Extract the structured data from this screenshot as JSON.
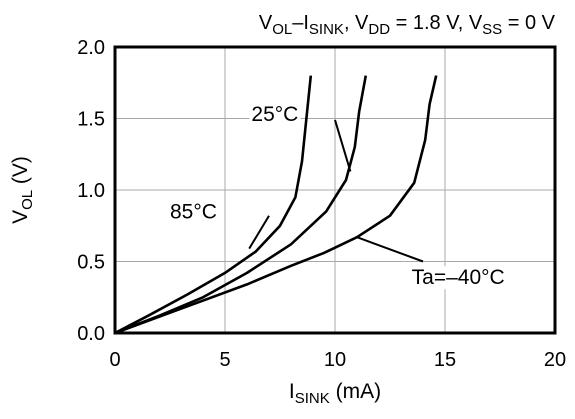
{
  "chart_data": {
    "type": "line",
    "title": {
      "parts": [
        {
          "t": "V"
        },
        {
          "t": "OL",
          "sub": true
        },
        {
          "t": "–I"
        },
        {
          "t": "SINK",
          "sub": true
        },
        {
          "t": ", V"
        },
        {
          "t": "DD",
          "sub": true
        },
        {
          "t": " = 1.8 V, V"
        },
        {
          "t": "SS",
          "sub": true
        },
        {
          "t": " = 0 V"
        }
      ]
    },
    "xlabel": {
      "parts": [
        {
          "t": "I"
        },
        {
          "t": "SINK",
          "sub": true
        },
        {
          "t": " (mA)"
        }
      ]
    },
    "ylabel": {
      "parts": [
        {
          "t": "V"
        },
        {
          "t": "OL",
          "sub": true
        },
        {
          "t": " (V)"
        }
      ]
    },
    "xlim": [
      0,
      20
    ],
    "ylim": [
      0,
      2.0
    ],
    "x_ticks": [
      {
        "value": 0,
        "label": "0"
      },
      {
        "value": 5,
        "label": "5"
      },
      {
        "value": 10,
        "label": "10"
      },
      {
        "value": 15,
        "label": "15"
      },
      {
        "value": 20,
        "label": "20"
      }
    ],
    "y_ticks": [
      {
        "value": 0,
        "label": "0.0"
      },
      {
        "value": 0.5,
        "label": "0.5"
      },
      {
        "value": 1.0,
        "label": "1.0"
      },
      {
        "value": 1.5,
        "label": "1.5"
      },
      {
        "value": 2.0,
        "label": "2.0"
      }
    ],
    "grid": true,
    "series": [
      {
        "key": "85c",
        "label": "85°C",
        "color": "#000000",
        "points": [
          [
            0,
            0
          ],
          [
            1.5,
            0.12
          ],
          [
            3.3,
            0.27
          ],
          [
            5.0,
            0.42
          ],
          [
            6.4,
            0.57
          ],
          [
            7.5,
            0.75
          ],
          [
            8.2,
            0.95
          ],
          [
            8.5,
            1.2
          ],
          [
            8.7,
            1.5
          ],
          [
            8.9,
            1.8
          ]
        ],
        "label_anchor": [
          6.1,
          0.59
        ]
      },
      {
        "key": "25c",
        "label": "25°C",
        "color": "#000000",
        "points": [
          [
            0,
            0
          ],
          [
            2.0,
            0.12
          ],
          [
            4.0,
            0.25
          ],
          [
            6.0,
            0.42
          ],
          [
            8.0,
            0.62
          ],
          [
            9.6,
            0.85
          ],
          [
            10.5,
            1.07
          ],
          [
            10.9,
            1.3
          ],
          [
            11.1,
            1.55
          ],
          [
            11.4,
            1.8
          ]
        ],
        "label_anchor": [
          10.7,
          1.13
        ]
      },
      {
        "key": "neg40c",
        "label": "Ta=–40°C",
        "color": "#000000",
        "points": [
          [
            0,
            0
          ],
          [
            3.0,
            0.17
          ],
          [
            6.0,
            0.34
          ],
          [
            8.0,
            0.47
          ],
          [
            9.5,
            0.56
          ],
          [
            11.0,
            0.67
          ],
          [
            12.5,
            0.82
          ],
          [
            13.6,
            1.05
          ],
          [
            14.1,
            1.35
          ],
          [
            14.3,
            1.6
          ],
          [
            14.6,
            1.8
          ]
        ],
        "label_anchor": [
          11.0,
          0.67
        ]
      }
    ],
    "annotations": [
      {
        "key": "85c",
        "text": "85°C",
        "text_at": [
          2.5,
          0.85
        ],
        "anchor": "start",
        "line_from": [
          7.0,
          0.82
        ]
      },
      {
        "key": "25c",
        "text": "25°C",
        "text_at": [
          6.2,
          1.53
        ],
        "anchor": "start",
        "line_from": [
          10.0,
          1.49
        ]
      },
      {
        "key": "neg40c",
        "text": "Ta=–40°C",
        "text_at": [
          15.6,
          0.39
        ],
        "anchor": "middle",
        "line_from": [
          14.0,
          0.5
        ]
      }
    ]
  }
}
